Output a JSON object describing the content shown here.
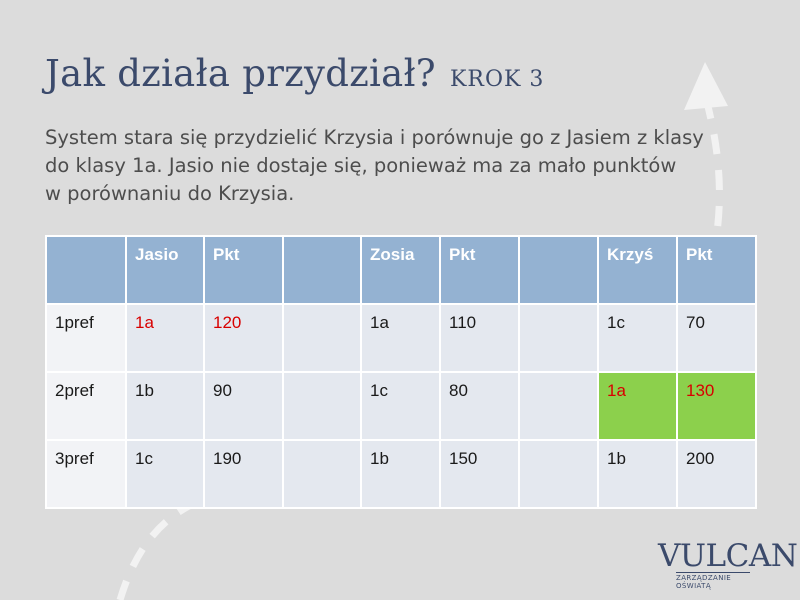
{
  "slide": {
    "title": "Jak działa przydział?",
    "step": "KROK 3",
    "description_lines": [
      "System stara się przydzielić Krzysia i porównuje go z Jasiem z klasy",
      "do klasy 1a. Jasio nie dostaje się, ponieważ ma za mało punktów",
      "w porównaniu do Krzysia."
    ]
  },
  "table": {
    "headers": [
      "",
      "Jasio",
      "Pkt",
      "",
      "Zosia",
      "Pkt",
      "",
      "Krzyś",
      "Pkt"
    ],
    "rows": [
      [
        "1pref",
        "1a",
        "120",
        "",
        "1a",
        "110",
        "",
        "1c",
        "70"
      ],
      [
        "2pref",
        "1b",
        "90",
        "",
        "1c",
        "80",
        "",
        "1a",
        "130"
      ],
      [
        "3pref",
        "1c",
        "190",
        "",
        "1b",
        "150",
        "",
        "1b",
        "200"
      ]
    ]
  },
  "colors": {
    "header_bg": "#94b2d2",
    "cell_bg": "#e4e8ef",
    "highlight_green": "#8cd04c",
    "highlight_text_red": "#d80000",
    "title_color": "#3b4a6b"
  },
  "logo": {
    "name": "VULCAN",
    "tagline": "ZARZĄDZANIE OŚWIATĄ"
  }
}
